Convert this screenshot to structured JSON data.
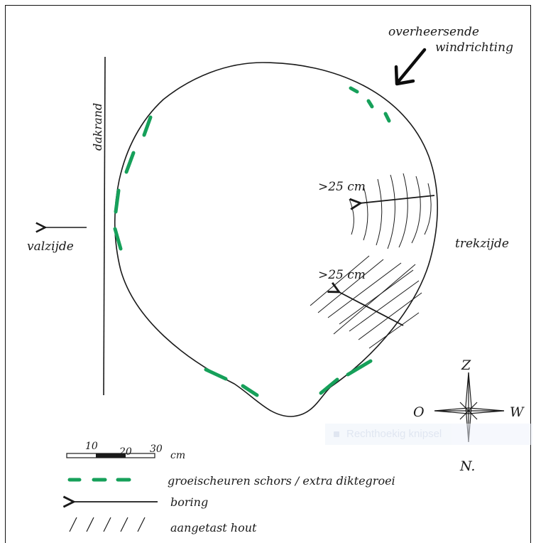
{
  "labels": {
    "wind": [
      "overheersende",
      "windrichting"
    ],
    "dakrand": "dakrand",
    "valzijde": "valzijde",
    "trekzijde": "trekzijde",
    "boring_depth_1": ">25 cm",
    "boring_depth_2": ">25 cm"
  },
  "compass": {
    "top": "Z",
    "left": "O",
    "right": "W",
    "bottom": "N."
  },
  "scale": {
    "ticks": [
      "10",
      "20",
      "30"
    ],
    "unit": "cm"
  },
  "legend": [
    {
      "symbol": "green-dashes",
      "text": "groeischeuren schors / extra diktegroei"
    },
    {
      "symbol": "arrow",
      "text": "boring"
    },
    {
      "symbol": "hatch",
      "text": "aangetast hout"
    }
  ],
  "ghost_tooltip": "Rechthoekig knipsel",
  "colors": {
    "ink": "#1a1a1a",
    "crack": "#16a05a"
  }
}
